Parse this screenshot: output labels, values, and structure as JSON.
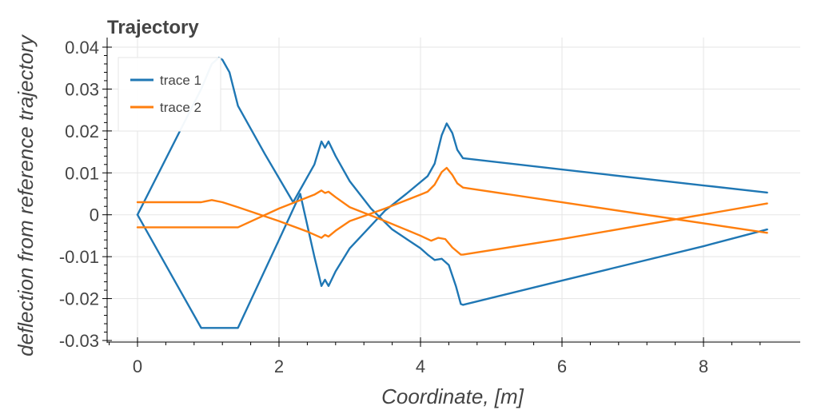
{
  "chart_data": {
    "type": "line",
    "title": "Trajectory",
    "xlabel": "Coordinate, [m]",
    "ylabel": "deflection from reference trajectory",
    "xlim": [
      -0.35,
      9.4
    ],
    "ylim": [
      -0.0305,
      0.041
    ],
    "x_ticks": [
      0,
      2,
      4,
      6,
      8
    ],
    "x_tick_labels": [
      "0",
      "2",
      "4",
      "6",
      "8"
    ],
    "y_ticks": [
      -0.03,
      -0.02,
      -0.01,
      0,
      0.01,
      0.02,
      0.03,
      0.04
    ],
    "y_tick_labels": [
      "-0.03",
      "-0.02",
      "-0.01",
      "0",
      "0.01",
      "0.02",
      "0.03",
      "0.04"
    ],
    "grid": true,
    "legend_position": "top-left",
    "series": [
      {
        "name": "trace 1",
        "color": "#1f77b4",
        "points": [
          [
            0,
            0
          ],
          [
            0.9,
            0.03
          ],
          [
            1.05,
            0.036
          ],
          [
            1.15,
            0.0375
          ],
          [
            1.2,
            0.037
          ],
          [
            1.3,
            0.034
          ],
          [
            1.42,
            0.026
          ],
          [
            1.8,
            0.0145
          ],
          [
            2.2,
            0.003
          ],
          [
            2.5,
            0.012
          ],
          [
            2.6,
            0.0175
          ],
          [
            2.65,
            0.016
          ],
          [
            2.7,
            0.0175
          ],
          [
            2.8,
            0.014
          ],
          [
            3.0,
            0.008
          ],
          [
            3.3,
            0.0015
          ],
          [
            3.6,
            -0.0035
          ],
          [
            4.0,
            -0.008
          ],
          [
            4.1,
            -0.0095
          ],
          [
            4.2,
            -0.0108
          ],
          [
            4.3,
            -0.0105
          ],
          [
            4.4,
            -0.012
          ],
          [
            4.5,
            -0.017
          ],
          [
            4.57,
            -0.0213
          ],
          [
            4.6,
            -0.0215
          ],
          [
            6.0,
            -0.0157
          ],
          [
            8.0,
            -0.0075
          ],
          [
            8.9,
            -0.0035
          ]
        ]
      },
      {
        "name": "trace 1",
        "color": "#1f77b4",
        "points": [
          [
            0,
            0
          ],
          [
            0.9,
            -0.027
          ],
          [
            1.42,
            -0.027
          ],
          [
            2.0,
            -0.006
          ],
          [
            2.3,
            0.005
          ],
          [
            2.5,
            -0.01
          ],
          [
            2.6,
            -0.017
          ],
          [
            2.65,
            -0.0155
          ],
          [
            2.7,
            -0.017
          ],
          [
            2.8,
            -0.0135
          ],
          [
            3.0,
            -0.008
          ],
          [
            3.5,
            0.001
          ],
          [
            3.8,
            0.005
          ],
          [
            4.1,
            0.0092
          ],
          [
            4.2,
            0.0122
          ],
          [
            4.3,
            0.019
          ],
          [
            4.37,
            0.0218
          ],
          [
            4.45,
            0.0195
          ],
          [
            4.52,
            0.0155
          ],
          [
            4.6,
            0.0135
          ],
          [
            6.0,
            0.0108
          ],
          [
            8.0,
            0.007
          ],
          [
            8.9,
            0.0053
          ]
        ]
      },
      {
        "name": "trace 2",
        "color": "#ff7f0e",
        "points": [
          [
            0,
            0.003
          ],
          [
            0.9,
            0.003
          ],
          [
            1.05,
            0.0035
          ],
          [
            1.2,
            0.003
          ],
          [
            1.42,
            0.0018
          ],
          [
            2.0,
            -0.0015
          ],
          [
            2.4,
            -0.004
          ],
          [
            2.6,
            -0.0055
          ],
          [
            2.65,
            -0.0048
          ],
          [
            2.7,
            -0.0052
          ],
          [
            2.8,
            -0.0038
          ],
          [
            3.0,
            -0.0015
          ],
          [
            3.5,
            0.0015
          ],
          [
            4.0,
            0.0048
          ],
          [
            4.1,
            0.0055
          ],
          [
            4.2,
            0.0072
          ],
          [
            4.3,
            0.0102
          ],
          [
            4.37,
            0.0112
          ],
          [
            4.45,
            0.0095
          ],
          [
            4.52,
            0.0075
          ],
          [
            4.6,
            0.0065
          ],
          [
            8.9,
            -0.0043
          ]
        ]
      },
      {
        "name": "trace 2",
        "color": "#ff7f0e",
        "points": [
          [
            0,
            -0.003
          ],
          [
            1.42,
            -0.003
          ],
          [
            2.0,
            0.0015
          ],
          [
            2.5,
            0.0048
          ],
          [
            2.6,
            0.0058
          ],
          [
            2.65,
            0.0052
          ],
          [
            2.7,
            0.0055
          ],
          [
            2.8,
            0.0042
          ],
          [
            3.0,
            0.0018
          ],
          [
            3.5,
            -0.0015
          ],
          [
            4.0,
            -0.005
          ],
          [
            4.15,
            -0.0062
          ],
          [
            4.25,
            -0.0055
          ],
          [
            4.35,
            -0.0058
          ],
          [
            4.45,
            -0.0078
          ],
          [
            4.57,
            -0.0095
          ],
          [
            4.6,
            -0.0095
          ],
          [
            6.0,
            -0.0058
          ],
          [
            8.9,
            0.0027
          ]
        ]
      }
    ],
    "legend": [
      {
        "label": "trace 1",
        "color": "#1f77b4"
      },
      {
        "label": "trace 2",
        "color": "#ff7f0e"
      }
    ]
  }
}
